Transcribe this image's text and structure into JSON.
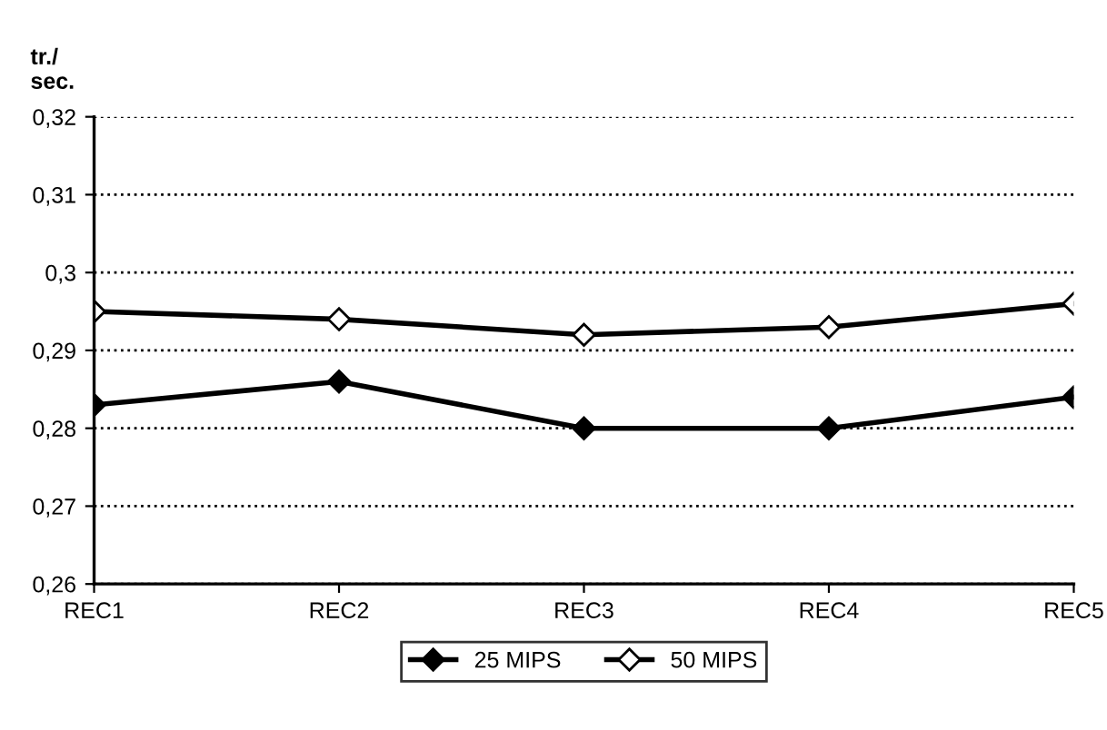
{
  "chart_data": {
    "type": "line",
    "ylabel": "tr./\nsec.",
    "categories": [
      "REC1",
      "REC2",
      "REC3",
      "REC4",
      "REC5"
    ],
    "series": [
      {
        "name": "25 MIPS",
        "color": "#000000",
        "values": [
          0.283,
          0.286,
          0.28,
          0.28,
          0.284
        ]
      },
      {
        "name": "50 MIPS",
        "color": "#000000",
        "values": [
          0.295,
          0.294,
          0.292,
          0.293,
          0.296
        ]
      }
    ],
    "ylim": [
      0.26,
      0.32
    ],
    "yticks": [
      {
        "value": 0.26,
        "label": "0,26"
      },
      {
        "value": 0.27,
        "label": "0,27"
      },
      {
        "value": 0.28,
        "label": "0,28"
      },
      {
        "value": 0.29,
        "label": "0,29"
      },
      {
        "value": 0.3,
        "label": "0,3"
      },
      {
        "value": 0.31,
        "label": "0,31"
      },
      {
        "value": 0.32,
        "label": "0,32"
      }
    ],
    "grid": "y",
    "legend": "bottom",
    "marker": "diamond",
    "line_style": "solid"
  }
}
